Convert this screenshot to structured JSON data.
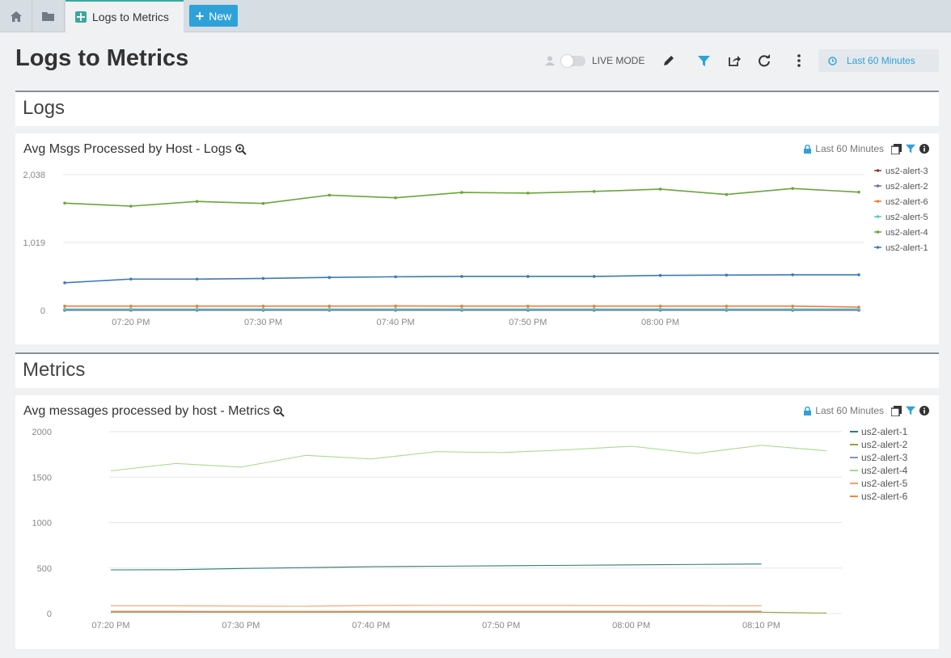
{
  "tabs": {
    "active_label": "Logs to Metrics",
    "new_label": "New"
  },
  "header": {
    "title": "Logs to Metrics",
    "live_mode_label": "LIVE MODE",
    "time_range": "Last 60 Minutes"
  },
  "colors": {
    "accent": "#2ea2d8",
    "tab_accent": "#3aa8a0"
  },
  "sections": {
    "logs": "Logs",
    "metrics": "Metrics"
  },
  "panels": {
    "logs": {
      "title": "Avg Msgs Processed by Host - Logs",
      "time_range": "Last 60 Minutes"
    },
    "metrics": {
      "title": "Avg messages processed by host - Metrics",
      "time_range": "Last 60 Minutes"
    }
  },
  "chart_data": [
    {
      "type": "line",
      "ylim": [
        0,
        2038
      ],
      "y_ticks": [
        "2,038",
        "1,019",
        "0"
      ],
      "y_tick_values": [
        2038,
        1019,
        0
      ],
      "x_ticks": [
        "07:20 PM",
        "07:30 PM",
        "07:40 PM",
        "07:50 PM",
        "08:00 PM"
      ],
      "x_tick_values": [
        1,
        3,
        5,
        7,
        9
      ],
      "x_count": 13,
      "legend_position": "right",
      "markers": true,
      "series": [
        {
          "name": "us2-alert-3",
          "color": "#8b3a2a",
          "values": [
            5,
            5,
            5,
            5,
            5,
            5,
            5,
            5,
            5,
            5,
            5,
            5,
            5
          ]
        },
        {
          "name": "us2-alert-2",
          "color": "#6d6e9c",
          "values": [
            3,
            3,
            3,
            3,
            3,
            3,
            3,
            3,
            3,
            3,
            3,
            3,
            3
          ]
        },
        {
          "name": "us2-alert-6",
          "color": "#ef7a3d",
          "values": [
            65,
            65,
            64,
            65,
            64,
            66,
            65,
            65,
            65,
            65,
            65,
            65,
            50
          ]
        },
        {
          "name": "us2-alert-5",
          "color": "#57c7c2",
          "values": [
            20,
            20,
            20,
            20,
            20,
            20,
            20,
            20,
            20,
            20,
            20,
            20,
            20
          ]
        },
        {
          "name": "us2-alert-4",
          "color": "#6ba53a",
          "values": [
            1610,
            1565,
            1635,
            1605,
            1730,
            1690,
            1770,
            1760,
            1785,
            1820,
            1740,
            1830,
            1775
          ]
        },
        {
          "name": "us2-alert-1",
          "color": "#3a7bb3",
          "values": [
            415,
            470,
            470,
            480,
            495,
            505,
            510,
            510,
            510,
            525,
            530,
            535,
            535
          ]
        }
      ]
    },
    {
      "type": "line",
      "ylim": [
        0,
        2000
      ],
      "y_ticks": [
        "2000",
        "1500",
        "1000",
        "500",
        "0"
      ],
      "y_tick_values": [
        2000,
        1500,
        1000,
        500,
        0
      ],
      "x_ticks": [
        "07:20 PM",
        "07:30 PM",
        "07:40 PM",
        "07:50 PM",
        "08:00 PM",
        "08:10 PM"
      ],
      "x_tick_values": [
        0,
        2,
        4,
        6,
        8,
        10
      ],
      "x_count": 12,
      "legend_position": "right",
      "markers": false,
      "series": [
        {
          "name": "us2-alert-1",
          "color": "#2d7f73",
          "values": [
            480,
            482,
            495,
            505,
            515,
            520,
            525,
            530,
            535,
            540,
            545,
            null
          ]
        },
        {
          "name": "us2-alert-2",
          "color": "#93a436",
          "values": [
            15,
            15,
            15,
            15,
            15,
            15,
            15,
            15,
            15,
            15,
            15,
            5
          ]
        },
        {
          "name": "us2-alert-3",
          "color": "#8597b5",
          "values": [
            20,
            20,
            20,
            20,
            20,
            20,
            20,
            20,
            20,
            20,
            20,
            null
          ]
        },
        {
          "name": "us2-alert-4",
          "color": "#a6d98c",
          "values": [
            1570,
            1650,
            1610,
            1740,
            1700,
            1780,
            1770,
            1800,
            1840,
            1760,
            1850,
            1790
          ]
        },
        {
          "name": "us2-alert-5",
          "color": "#f6a068",
          "values": [
            85,
            85,
            82,
            80,
            88,
            90,
            88,
            88,
            87,
            86,
            85,
            null
          ]
        },
        {
          "name": "us2-alert-6",
          "color": "#e8894b",
          "values": [
            25,
            25,
            24,
            24,
            25,
            25,
            25,
            25,
            25,
            25,
            25,
            null
          ]
        }
      ]
    }
  ]
}
